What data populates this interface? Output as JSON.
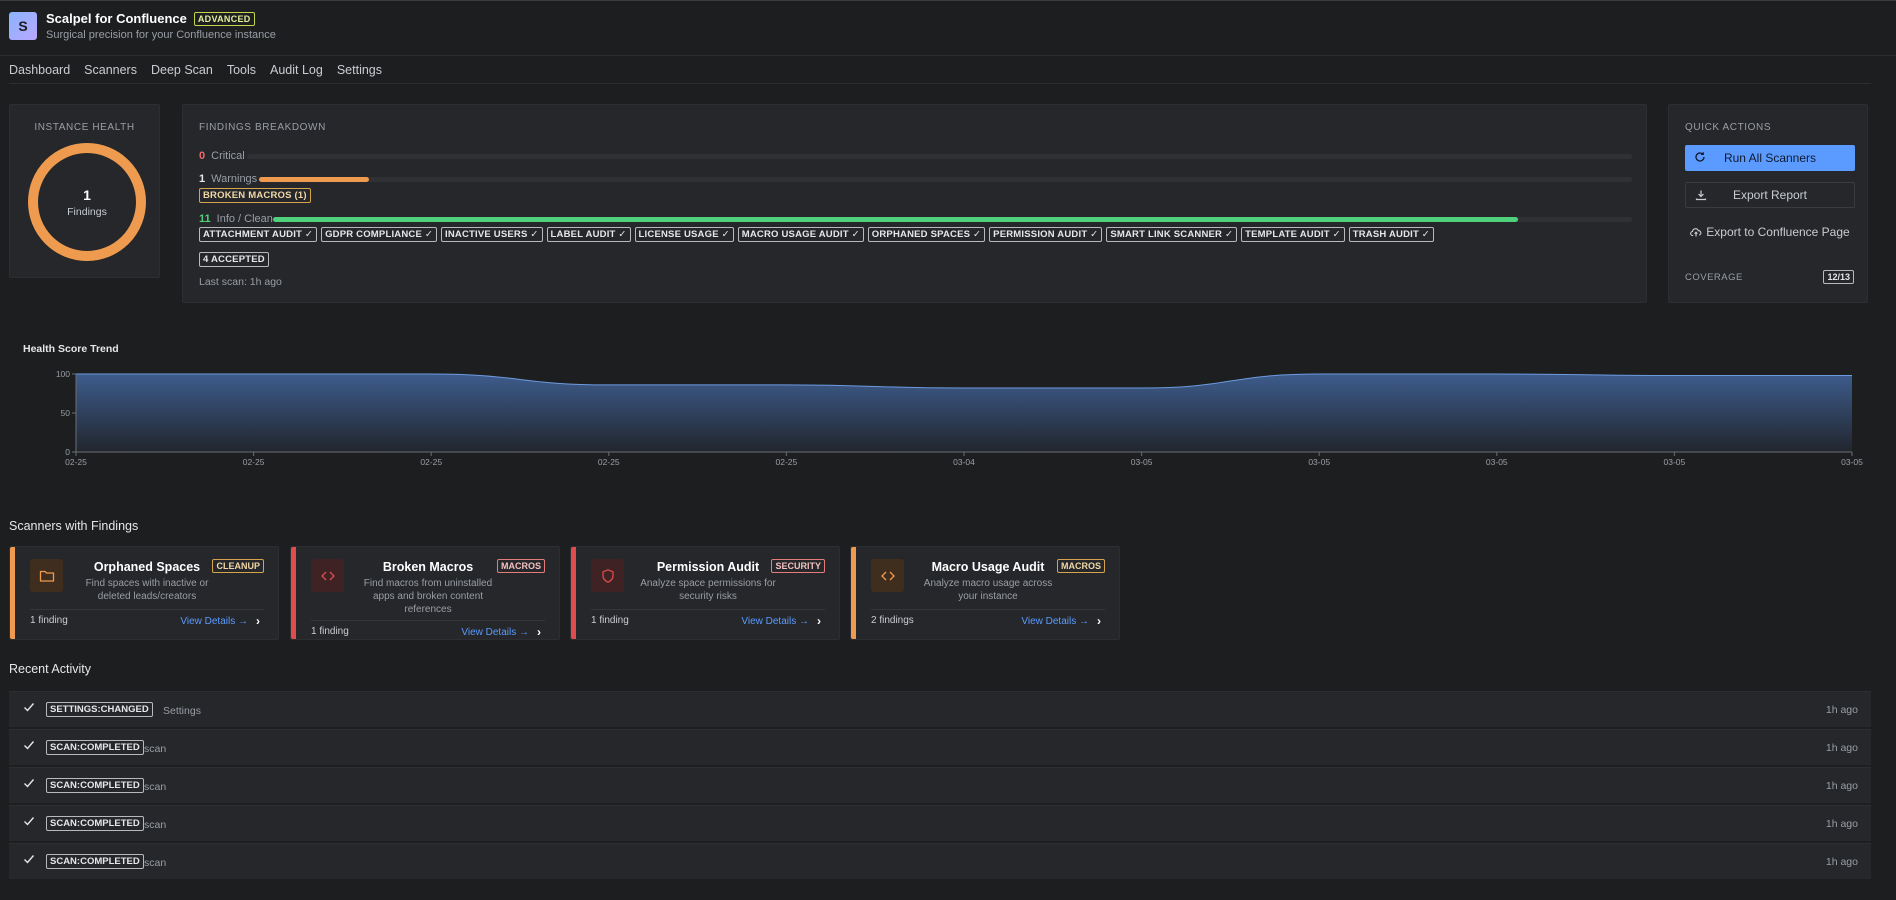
{
  "app": {
    "logo_letter": "S",
    "title": "Scalpel for Confluence",
    "edition_badge": "ADVANCED",
    "subtitle": "Surgical precision for your Confluence instance"
  },
  "tabs": [
    {
      "label": "Dashboard",
      "active": true
    },
    {
      "label": "Scanners",
      "active": false
    },
    {
      "label": "Deep Scan",
      "active": false
    },
    {
      "label": "Tools",
      "active": false
    },
    {
      "label": "Audit Log",
      "active": false
    },
    {
      "label": "Settings",
      "active": false
    }
  ],
  "health": {
    "label": "INSTANCE HEALTH",
    "findings_count": "1",
    "findings_label": "Findings"
  },
  "findings": {
    "label": "FINDINGS BREAKDOWN",
    "critical": {
      "count": "0",
      "label": "Critical",
      "fraction": 0.0,
      "color": "#ef6a6a"
    },
    "warnings": {
      "count": "1",
      "label": "Warnings",
      "fraction": 0.08,
      "color": "#ef9b4f"
    },
    "warning_chips": [
      "BROKEN MACROS (1)"
    ],
    "info": {
      "count": "11",
      "label": "Info / Clean",
      "fraction": 0.916,
      "color": "#4fd07a"
    },
    "clean_chips": [
      "ATTACHMENT AUDIT ✓",
      "GDPR COMPLIANCE ✓",
      "INACTIVE USERS ✓",
      "LABEL AUDIT ✓",
      "LICENSE USAGE ✓",
      "MACRO USAGE AUDIT ✓",
      "ORPHANED SPACES ✓",
      "PERMISSION AUDIT ✓",
      "SMART LINK SCANNER ✓",
      "TEMPLATE AUDIT ✓",
      "TRASH AUDIT ✓"
    ],
    "accepted_chip": "4 ACCEPTED",
    "last_scan": "Last scan: 1h ago"
  },
  "quick_actions": {
    "label": "QUICK ACTIONS",
    "run_all": "Run All Scanners",
    "export_report": "Export Report",
    "export_confluence": "Export to Confluence Page",
    "coverage_label": "COVERAGE",
    "coverage_value": "12/13"
  },
  "chart_data": {
    "type": "area",
    "title": "Health Score Trend",
    "x": [
      "02-25",
      "02-25",
      "02-25",
      "02-25",
      "02-25",
      "03-04",
      "03-05",
      "03-05",
      "03-05",
      "03-05",
      "03-05"
    ],
    "series": [
      {
        "values": [
          100,
          100,
          100,
          86,
          86,
          82,
          82,
          100,
          100,
          98,
          98
        ]
      }
    ],
    "ylim": [
      0,
      100
    ],
    "yticks": [
      "0",
      "50",
      "100"
    ],
    "fill_color": "#3f5f92",
    "line_color": "#6d9be0"
  },
  "scanners_section": {
    "title": "Scanners with Findings"
  },
  "scanners": [
    {
      "name": "Orphaned Spaces",
      "desc": "Find spaces with inactive or deleted leads/creators",
      "tag": "CLEANUP",
      "count": "1 finding",
      "link": "View Details →",
      "accent": "#ef9b4f",
      "icon": "folder-icon"
    },
    {
      "name": "Broken Macros",
      "desc": "Find macros from uninstalled apps and broken content references",
      "tag": "MACROS",
      "count": "1 finding",
      "link": "View Details →",
      "accent": "#e14b4b",
      "icon": "code-icon"
    },
    {
      "name": "Permission Audit",
      "desc": "Analyze space permissions for security risks",
      "tag": "SECURITY",
      "count": "1 finding",
      "link": "View Details →",
      "accent": "#e14b4b",
      "icon": "shield-icon"
    },
    {
      "name": "Macro Usage Audit",
      "desc": "Analyze macro usage across your instance",
      "tag": "MACROS",
      "count": "2 findings",
      "link": "View Details →",
      "accent": "#ef9b4f",
      "icon": "code-icon"
    }
  ],
  "activity_section": {
    "title": "Recent Activity"
  },
  "activity": [
    {
      "type": "SETTINGS:CHANGED",
      "target": "Settings",
      "time": "1h ago"
    },
    {
      "type": "SCAN:COMPLETED",
      "target": "scan",
      "time": "1h ago"
    },
    {
      "type": "SCAN:COMPLETED",
      "target": "scan",
      "time": "1h ago"
    },
    {
      "type": "SCAN:COMPLETED",
      "target": "scan",
      "time": "1h ago"
    },
    {
      "type": "SCAN:COMPLETED",
      "target": "scan",
      "time": "1h ago"
    }
  ]
}
